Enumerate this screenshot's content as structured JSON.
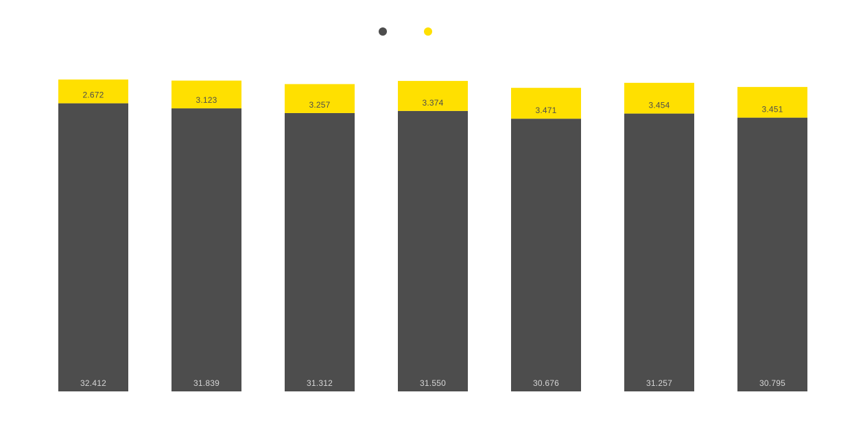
{
  "chart_data": {
    "type": "bar",
    "stacked": true,
    "categories": [
      "",
      "",
      "",
      "",
      "",
      "",
      ""
    ],
    "series": [
      {
        "name": "",
        "color": "#4d4d4d",
        "label_color": "#d6d6d6",
        "values": [
          32.412,
          31.839,
          31.312,
          31.55,
          30.676,
          31.257,
          30.795
        ],
        "labels": [
          "32.412",
          "31.839",
          "31.312",
          "31.550",
          "30.676",
          "31.257",
          "30.795"
        ]
      },
      {
        "name": "",
        "color": "#ffe000",
        "label_color": "#4d4d4d",
        "values": [
          2.672,
          3.123,
          3.257,
          3.374,
          3.471,
          3.454,
          3.451
        ],
        "labels": [
          "2.672",
          "3.123",
          "3.257",
          "3.374",
          "3.471",
          "3.454",
          "3.451"
        ]
      }
    ],
    "legend": {
      "position": "top-center",
      "entries": [
        "",
        ""
      ]
    },
    "ylim": [
      0,
      35.084
    ],
    "grid": false,
    "title": "",
    "xlabel": "",
    "ylabel": ""
  }
}
